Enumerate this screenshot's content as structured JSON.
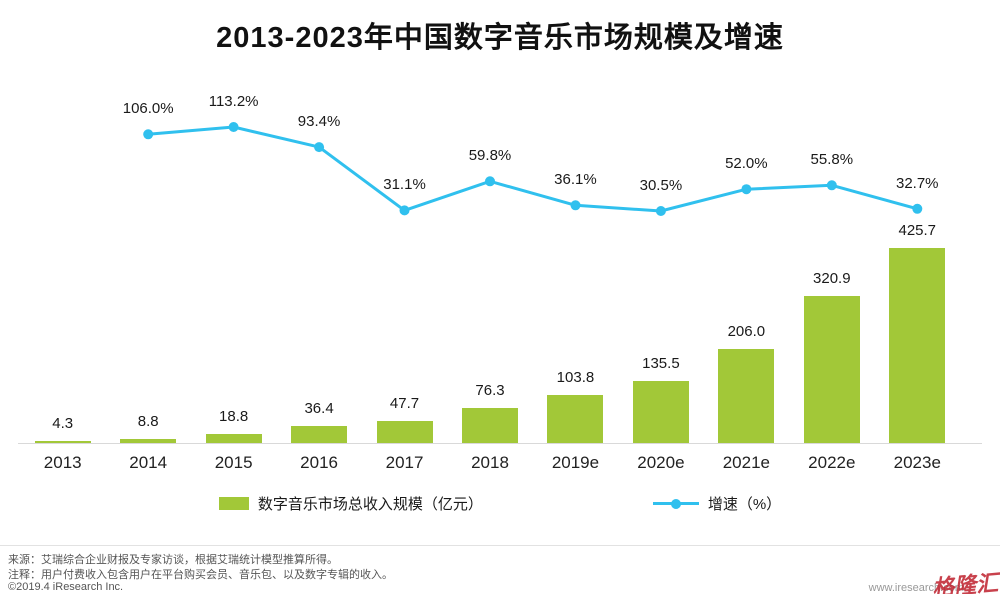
{
  "title": "2013-2023年中国数字音乐市场规模及增速",
  "chart_data": {
    "type": "bar+line",
    "categories": [
      "2013",
      "2014",
      "2015",
      "2016",
      "2017",
      "2018",
      "2019e",
      "2020e",
      "2021e",
      "2022e",
      "2023e"
    ],
    "series": [
      {
        "name": "数字音乐市场总收入规模（亿元）",
        "type": "bar",
        "color": "#a2c838",
        "values": [
          4.3,
          8.8,
          18.8,
          36.4,
          47.7,
          76.3,
          103.8,
          135.5,
          206.0,
          320.9,
          425.7
        ]
      },
      {
        "name": "增速（%）",
        "type": "line",
        "color": "#30c0ee",
        "values": [
          null,
          106.0,
          113.2,
          93.4,
          31.1,
          59.8,
          36.1,
          30.5,
          52.0,
          55.8,
          32.7
        ]
      }
    ],
    "bar_value_labels": [
      "4.3",
      "8.8",
      "18.8",
      "36.4",
      "47.7",
      "76.3",
      "103.8",
      "135.5",
      "206.0",
      "320.9",
      "425.7"
    ],
    "line_value_labels": [
      null,
      "106.0%",
      "113.2%",
      "93.4%",
      "31.1%",
      "59.8%",
      "36.1%",
      "30.5%",
      "52.0%",
      "55.8%",
      "32.7%"
    ],
    "ylim_bar": [
      0,
      440
    ],
    "ylim_line_pct": [
      0,
      120
    ],
    "grid": false,
    "legend_position": "bottom"
  },
  "legend": [
    {
      "label": "数字音乐市场总收入规模（亿元）",
      "color": "#a2c838",
      "marker": "square"
    },
    {
      "label": "增速（%）",
      "color": "#30c0ee",
      "marker": "line-dot"
    }
  ],
  "footer": {
    "source": "来源：艾瑞综合企业财报及专家访谈，根据艾瑞统计模型推算所得。",
    "note": "注释：用户付费收入包含用户在平台购买会员、音乐包、以及数字专辑的收入。",
    "copyright": "©2019.4 iResearch Inc.",
    "website": "www.iresearch.com",
    "watermark": "格隆汇"
  }
}
